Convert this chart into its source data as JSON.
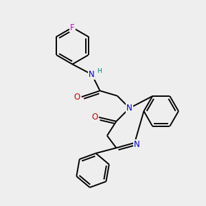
{
  "bg_color": "#eeeeee",
  "atom_colors": {
    "C": "#000000",
    "N": "#0000cc",
    "O": "#cc0000",
    "F": "#cc00cc",
    "H": "#008080"
  },
  "bond_color": "#000000",
  "bond_width": 1.4,
  "font_size_atom": 8.5,
  "font_size_H": 6.5
}
